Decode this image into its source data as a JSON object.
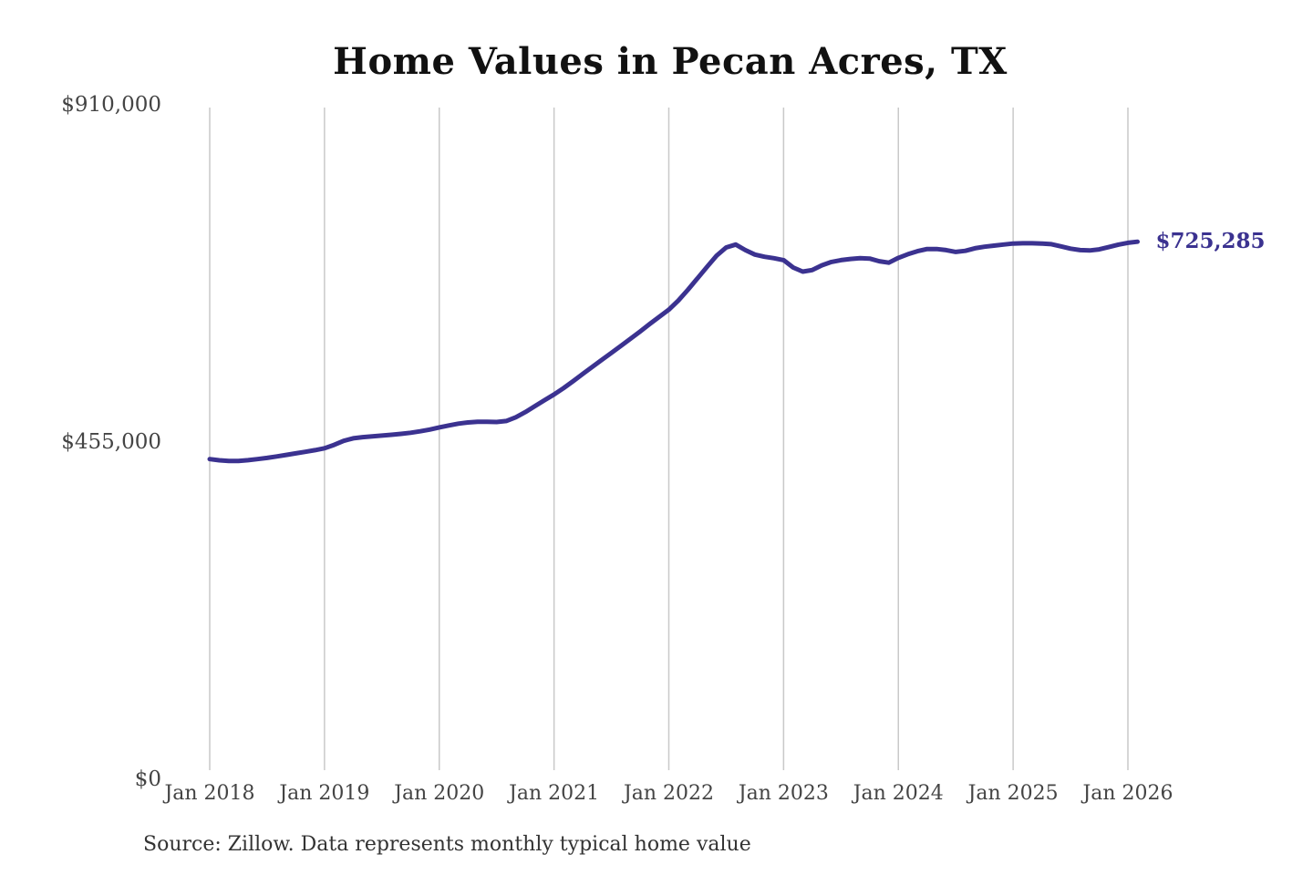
{
  "title": "Home Values in Pecan Acres, TX",
  "source_note": "Source: Zillow. Data represents monthly typical home value",
  "end_label": "$725,285",
  "colors": {
    "background": "#ffffff",
    "line": "#3b3290",
    "end_label": "#3b3290",
    "gridline": "#c9c9c9",
    "title": "#111111",
    "axis_label": "#444444",
    "source": "#333333"
  },
  "chart_data": {
    "type": "line",
    "title": "Home Values in Pecan Acres, TX",
    "xlabel": "",
    "ylabel": "",
    "ylim": [
      0,
      910000
    ],
    "grid": "vertical-only",
    "legend": "none",
    "y_ticks": [
      {
        "label": "$0",
        "value": 0
      },
      {
        "label": "$455,000",
        "value": 455000
      },
      {
        "label": "$910,000",
        "value": 910000
      }
    ],
    "x_tick_labels": [
      "Jan 2018",
      "Jan 2019",
      "Jan 2020",
      "Jan 2021",
      "Jan 2022",
      "Jan 2023",
      "Jan 2024",
      "Jan 2025",
      "Jan 2026"
    ],
    "series": [
      {
        "name": "Monthly typical home value",
        "start": "Jan 2018",
        "frequency": "monthly",
        "final_value": 725285,
        "values": [
          432000,
          430400,
          429400,
          429400,
          430500,
          432000,
          433600,
          435600,
          437600,
          439700,
          441800,
          444100,
          446600,
          451200,
          456600,
          460100,
          461600,
          462700,
          463700,
          464800,
          466100,
          467600,
          469500,
          471900,
          474800,
          477400,
          479900,
          481400,
          482400,
          482300,
          482100,
          483400,
          488500,
          495500,
          503400,
          511400,
          519200,
          527800,
          537200,
          546800,
          556400,
          566000,
          575400,
          584800,
          594400,
          604200,
          614200,
          624000,
          633500,
          646000,
          660500,
          676000,
          691500,
          706500,
          717500,
          721500,
          714000,
          708000,
          705000,
          703000,
          700500,
          690500,
          685000,
          687000,
          693500,
          698000,
          700500,
          702000,
          703000,
          702500,
          699000,
          697000,
          703500,
          708500,
          712500,
          715500,
          715500,
          714000,
          711500,
          713000,
          716500,
          718500,
          720000,
          721500,
          722800,
          723200,
          723200,
          722800,
          722000,
          719000,
          716000,
          714000,
          713500,
          715000,
          718000,
          721300,
          723800,
          725285
        ]
      }
    ]
  }
}
